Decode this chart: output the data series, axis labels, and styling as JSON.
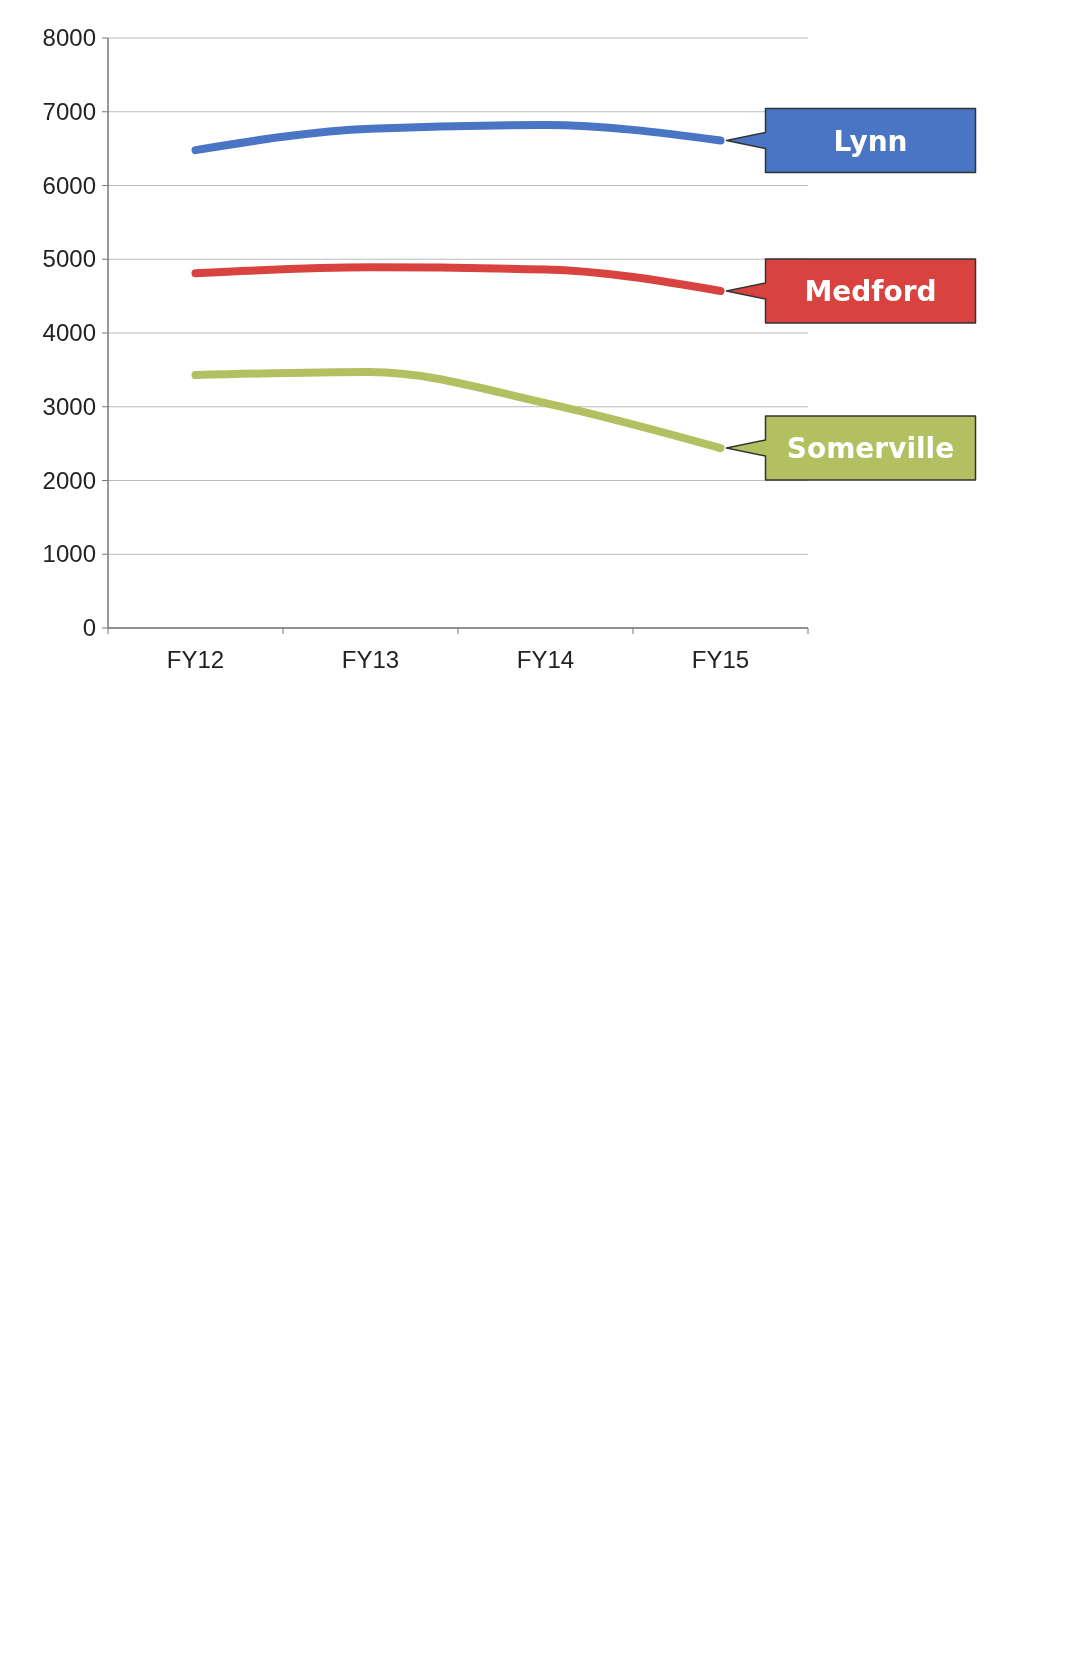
{
  "chart_data": {
    "type": "line",
    "categories": [
      "FY12",
      "FY13",
      "FY14",
      "FY15"
    ],
    "series": [
      {
        "name": "Lynn",
        "color": "#4a74c4",
        "values": [
          6480,
          6770,
          6820,
          6610
        ]
      },
      {
        "name": "Medford",
        "color": "#d9433f",
        "values": [
          4810,
          4890,
          4860,
          4570
        ]
      },
      {
        "name": "Somerville",
        "color": "#b3c062",
        "values": [
          3430,
          3470,
          3050,
          2440
        ]
      }
    ],
    "ylim": [
      0,
      8000
    ],
    "yticks": [
      0,
      1000,
      2000,
      3000,
      4000,
      5000,
      6000,
      7000,
      8000
    ],
    "grid": "y",
    "marker": "none",
    "line_style": "solid"
  }
}
